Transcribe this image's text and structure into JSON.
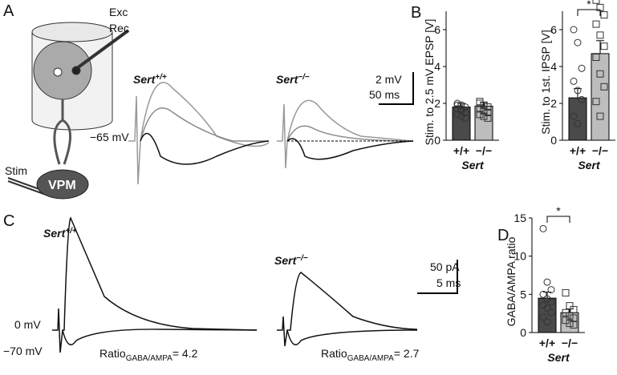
{
  "figure": {
    "panels": [
      "A",
      "B",
      "C",
      "D"
    ],
    "a": {
      "exc": "Exc",
      "rec": "Rec",
      "stim": "Stim",
      "vpm": "VPM",
      "vm": "−65 mV",
      "wt": "Sert",
      "wt_sup": "+/+",
      "ko": "Sert",
      "ko_sup": "−/−",
      "scale_v": "2 mV",
      "scale_t": "50 ms"
    },
    "c": {
      "wt": "Sert",
      "wt_sup": "+/+",
      "ko": "Sert",
      "ko_sup": "−/−",
      "scale_i": "50 pA",
      "scale_t": "5 ms",
      "v0": "0 mV",
      "v70": "−70 mV",
      "ratio_wt": {
        "pre": "Ratio",
        "sub": "GABA/AMPA",
        "post": "= 4.2"
      },
      "ratio_ko": {
        "pre": "Ratio",
        "sub": "GABA/AMPA",
        "post": "= 2.7"
      }
    }
  },
  "chart_data": [
    {
      "type": "bar",
      "ylabel": "Stim. to 2.5 mV EPSP [V]",
      "xlabel": "Sert",
      "categories": [
        "+/+",
        "−/−"
      ],
      "values": [
        1.8,
        1.85
      ],
      "errors": [
        0.2,
        0.2
      ],
      "colors": [
        "#4a4a4a",
        "#bdbdbd"
      ],
      "points": [
        [
          2.0,
          1.9,
          1.8,
          1.7,
          1.6,
          1.5,
          1.4,
          1.3,
          1.2,
          1.9,
          1.7,
          1.5
        ],
        [
          2.1,
          1.9,
          1.8,
          1.7,
          1.6,
          1.5,
          1.4,
          1.3,
          1.2,
          2.0,
          1.6
        ]
      ],
      "ylim": [
        0,
        7
      ],
      "yticks": [
        0,
        2,
        4,
        6
      ]
    },
    {
      "type": "bar",
      "ylabel": "Stim. to 1st. IPSP [V]",
      "xlabel": "Sert",
      "categories": [
        "+/+",
        "−/−"
      ],
      "values": [
        2.3,
        4.7
      ],
      "errors": [
        0.5,
        0.7
      ],
      "colors": [
        "#4a4a4a",
        "#bdbdbd"
      ],
      "points": [
        [
          6.0,
          5.3,
          3.9,
          3.2,
          2.7,
          2.2,
          1.3,
          0.9
        ],
        [
          7.6,
          7.2,
          6.8,
          6.3,
          5.7,
          5.1,
          4.5,
          3.6,
          2.9,
          2.1,
          1.3
        ]
      ],
      "ylim": [
        0,
        7
      ],
      "yticks": [
        0,
        2,
        4,
        6
      ],
      "significance": "*"
    },
    {
      "type": "bar",
      "ylabel": "GABA/AMPA ratio",
      "xlabel": "Sert",
      "categories": [
        "+/+",
        "−/−"
      ],
      "values": [
        4.5,
        2.6
      ],
      "errors": [
        0.8,
        0.5
      ],
      "colors": [
        "#4a4a4a",
        "#bdbdbd"
      ],
      "points": [
        [
          13.6,
          6.6,
          5.6,
          5.0,
          4.4,
          4.0,
          3.6,
          3.2,
          2.6,
          2.0,
          1.4
        ],
        [
          5.2,
          3.5,
          3.0,
          2.6,
          2.2,
          1.9,
          1.6,
          1.2,
          1.0
        ]
      ],
      "ylim": [
        0,
        15
      ],
      "yticks": [
        0,
        5,
        10,
        15
      ],
      "significance": "*"
    }
  ]
}
